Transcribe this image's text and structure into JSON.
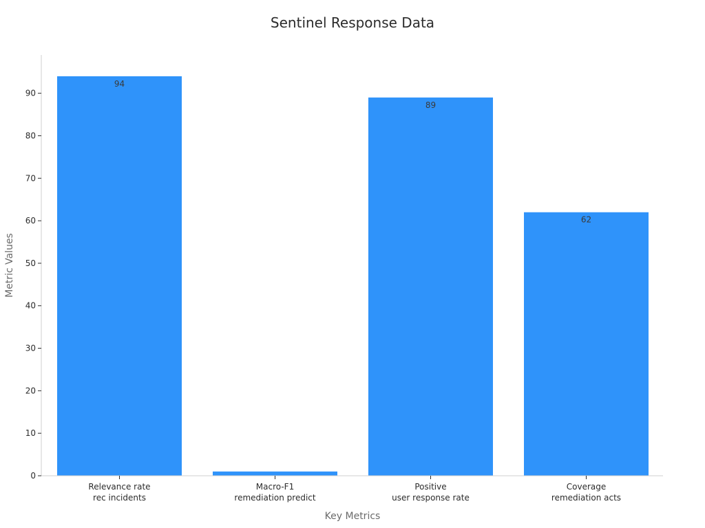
{
  "chart_data": {
    "type": "bar",
    "title": "Sentinel Response Data",
    "xlabel": "Key Metrics",
    "ylabel": "Metric Values",
    "categories": [
      [
        "Relevance rate",
        "rec incidents"
      ],
      [
        "Macro-F1",
        "remediation predict"
      ],
      [
        "Positive",
        "user response rate"
      ],
      [
        "Coverage",
        "remediation acts"
      ]
    ],
    "values": [
      94,
      1,
      89,
      62
    ],
    "data_labels": [
      "94",
      "",
      "89",
      "62"
    ],
    "ylim": [
      0,
      99
    ],
    "yticks": [
      0,
      10,
      20,
      30,
      40,
      50,
      60,
      70,
      80,
      90
    ],
    "grid": false,
    "legend": "none",
    "bar_color": "#2f93fa"
  }
}
